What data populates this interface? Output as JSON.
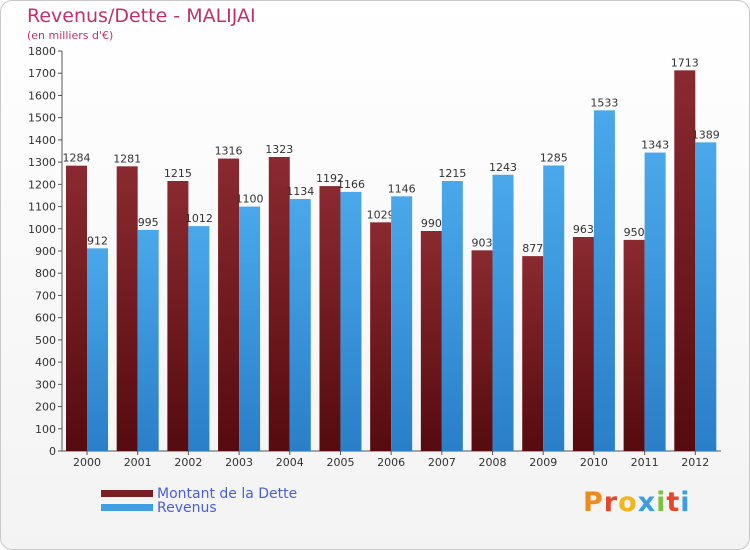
{
  "header": {
    "title": "Revenus/Dette - MALIJAI",
    "subtitle": "(en milliers d'€)"
  },
  "logo": {
    "text": "Proxiti"
  },
  "colors": {
    "dette": "#7a1f24",
    "revenus": "#3f9fe0",
    "title": "#c0306f",
    "legend_text": "#4a5ed8"
  },
  "legend": {
    "items": [
      {
        "label": "Montant de la Dette",
        "color": "#7a1f24"
      },
      {
        "label": "Revenus",
        "color": "#3f9fe0"
      }
    ]
  },
  "chart_data": {
    "type": "bar",
    "title": "Revenus/Dette - MALIJAI",
    "subtitle": "(en milliers d'€)",
    "categories": [
      "2000",
      "2001",
      "2002",
      "2003",
      "2004",
      "2005",
      "2006",
      "2007",
      "2008",
      "2009",
      "2010",
      "2011",
      "2012"
    ],
    "series": [
      {
        "name": "Montant de la Dette",
        "color": "#7a1f24",
        "values": [
          1284,
          1281,
          1215,
          1316,
          1323,
          1192,
          1029,
          990,
          903,
          877,
          963,
          950,
          1713
        ]
      },
      {
        "name": "Revenus",
        "color": "#3f9fe0",
        "values": [
          912,
          995,
          1012,
          1100,
          1134,
          1166,
          1146,
          1215,
          1243,
          1285,
          1533,
          1343,
          1389
        ]
      }
    ],
    "ylim": [
      0,
      1800
    ],
    "yticks": [
      0,
      100,
      200,
      300,
      400,
      500,
      600,
      700,
      800,
      900,
      1000,
      1100,
      1200,
      1300,
      1400,
      1500,
      1600,
      1700,
      1800
    ],
    "grid": false,
    "legend_position": "bottom-left"
  }
}
